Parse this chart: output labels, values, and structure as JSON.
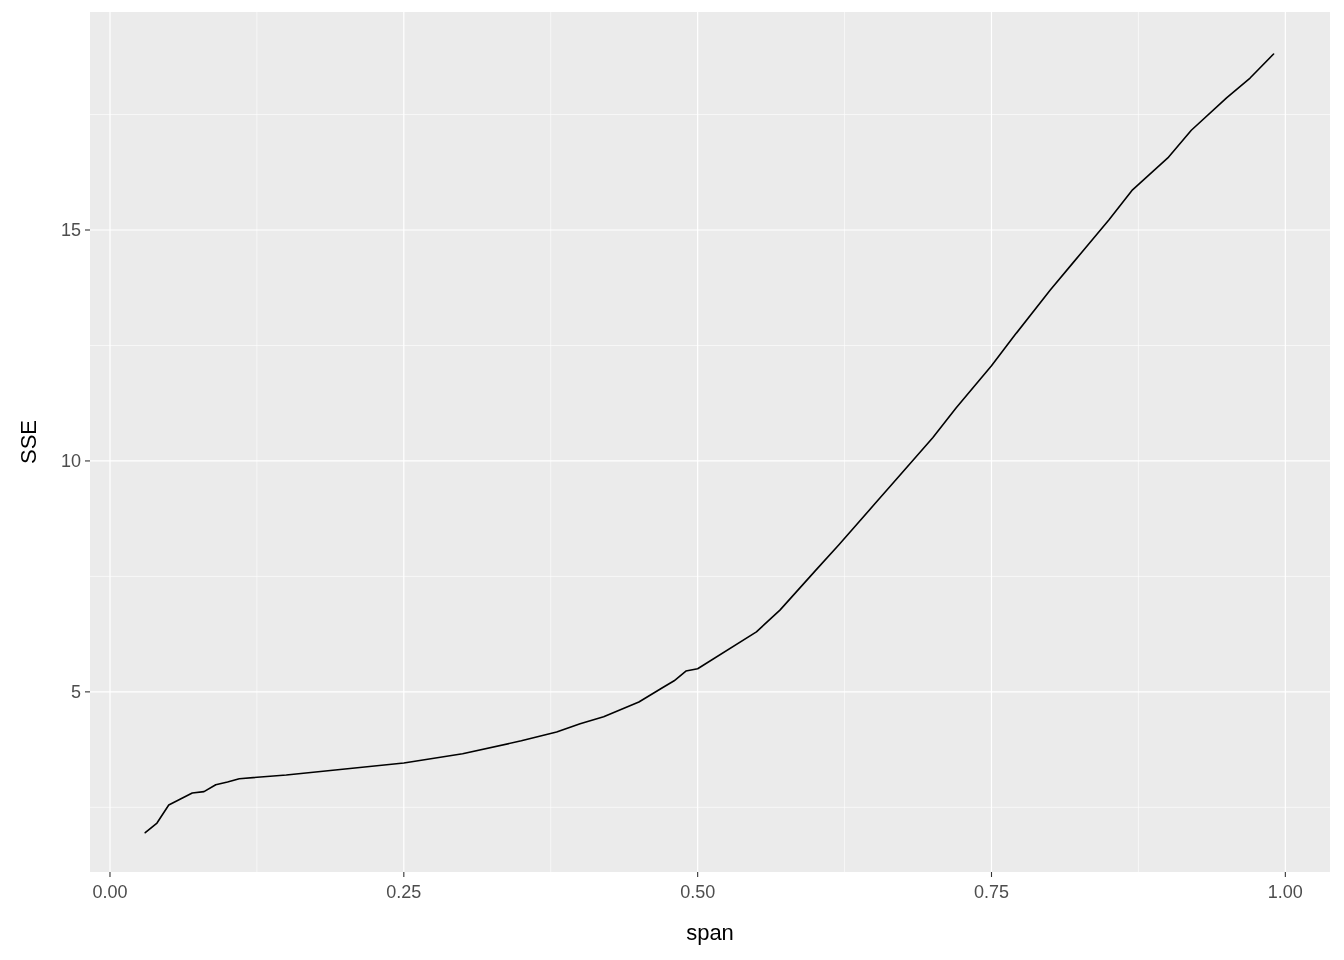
{
  "chart_data": {
    "type": "line",
    "xlabel": "span",
    "ylabel": "SSE",
    "xlim": [
      -0.017,
      1.038
    ],
    "ylim": [
      1.1,
      19.72
    ],
    "xticks": [
      {
        "value": 0,
        "label": "0.00"
      },
      {
        "value": 0.125,
        "label": null
      },
      {
        "value": 0.25,
        "label": "0.25"
      },
      {
        "value": 0.375,
        "label": null
      },
      {
        "value": 0.5,
        "label": "0.50"
      },
      {
        "value": 0.625,
        "label": null
      },
      {
        "value": 0.75,
        "label": "0.75"
      },
      {
        "value": 0.875,
        "label": null
      },
      {
        "value": 1,
        "label": "1.00"
      }
    ],
    "yticks": [
      {
        "value": 2.5,
        "label": null
      },
      5,
      {
        "value": 7.5,
        "label": null
      },
      10,
      {
        "value": 12.5,
        "label": null
      },
      15,
      {
        "value": 17.5,
        "label": null
      }
    ],
    "grid": true,
    "marker": "none",
    "line_style": "solid",
    "series": [
      {
        "color": "#000000",
        "x": [
          0.03,
          0.04,
          0.05,
          0.06,
          0.07,
          0.08,
          0.09,
          0.1,
          0.11,
          0.15,
          0.2,
          0.25,
          0.3,
          0.35,
          0.38,
          0.4,
          0.42,
          0.45,
          0.47,
          0.48,
          0.49,
          0.5,
          0.55,
          0.57,
          0.6,
          0.62,
          0.65,
          0.67,
          0.7,
          0.72,
          0.75,
          0.77,
          0.8,
          0.82,
          0.85,
          0.87,
          0.9,
          0.92,
          0.95,
          0.97,
          0.99
        ],
        "values": [
          1.95,
          2.16,
          2.55,
          2.68,
          2.81,
          2.84,
          2.99,
          3.05,
          3.12,
          3.2,
          3.33,
          3.46,
          3.66,
          3.94,
          4.13,
          4.31,
          4.46,
          4.78,
          5.09,
          5.24,
          5.45,
          5.5,
          6.3,
          6.77,
          7.62,
          8.18,
          9.05,
          9.63,
          10.5,
          11.15,
          12.06,
          12.73,
          13.7,
          14.31,
          15.22,
          15.87,
          16.56,
          17.16,
          17.86,
          18.29,
          18.81
        ]
      }
    ]
  }
}
